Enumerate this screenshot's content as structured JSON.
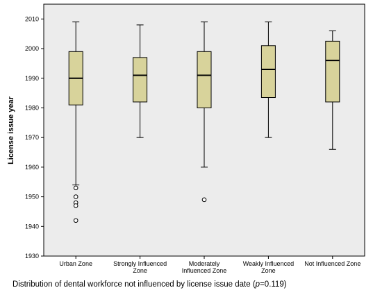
{
  "chart_data": {
    "type": "boxplot",
    "title": "",
    "xlabel": "",
    "ylabel": "License issue year",
    "ylim": [
      1930,
      2015
    ],
    "yticks": [
      1930,
      1940,
      1950,
      1960,
      1970,
      1980,
      1990,
      2000,
      2010
    ],
    "grid": false,
    "box_color": "#d8d39b",
    "plot_background": "#ececec",
    "categories": [
      [
        "Urban Zone"
      ],
      [
        "Strongly Influenced",
        "Zone"
      ],
      [
        "Moderately",
        "Influenced Zone"
      ],
      [
        "Weakly Influenced",
        "Zone"
      ],
      [
        "Not Influenced Zone"
      ]
    ],
    "boxes": [
      {
        "whisker_low": 1954,
        "q1": 1981,
        "median": 1990,
        "q3": 1999,
        "whisker_high": 2009,
        "outliers": [
          1953,
          1950,
          1948,
          1947,
          1942
        ]
      },
      {
        "whisker_low": 1970,
        "q1": 1982,
        "median": 1991,
        "q3": 1997,
        "whisker_high": 2008,
        "outliers": []
      },
      {
        "whisker_low": 1960,
        "q1": 1980,
        "median": 1991,
        "q3": 1999,
        "whisker_high": 2009,
        "outliers": [
          1949
        ]
      },
      {
        "whisker_low": 1970,
        "q1": 1983.5,
        "median": 1993,
        "q3": 2001,
        "whisker_high": 2009,
        "outliers": []
      },
      {
        "whisker_low": 1966,
        "q1": 1982,
        "median": 1996,
        "q3": 2002.5,
        "whisker_high": 2006,
        "outliers": []
      }
    ]
  },
  "caption": {
    "prefix": "Distribution of dental workforce not influenced by license issue date (",
    "p_symbol": "p",
    "suffix": "=0.119)"
  }
}
